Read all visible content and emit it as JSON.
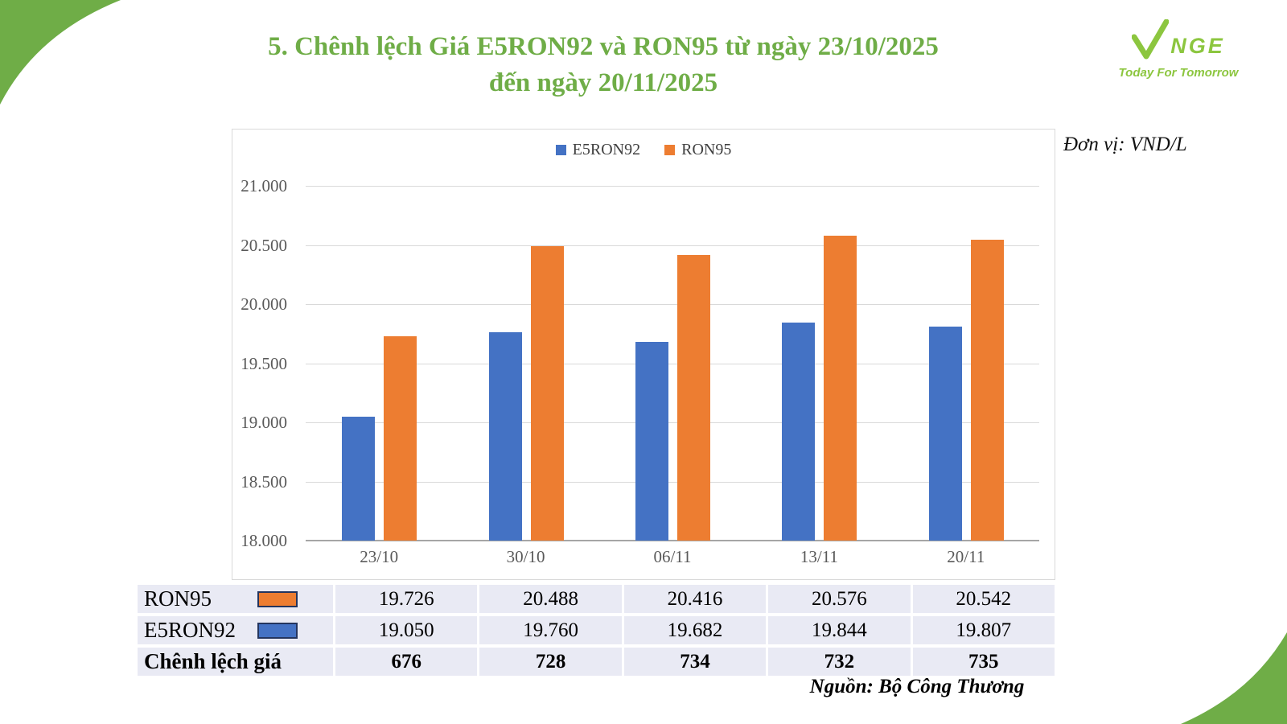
{
  "title": {
    "line1": "5. Chênh lệch Giá E5RON92 và RON95 từ ngày 23/10/2025",
    "line2": "đến ngày 20/11/2025"
  },
  "logo": {
    "brand_rest": "NGE",
    "tagline": "Today For Tomorrow"
  },
  "unit_label": "Đơn vị: VND/L",
  "source_label": "Nguồn: Bộ Công Thương",
  "chart_data": {
    "type": "bar",
    "categories": [
      "23/10",
      "30/10",
      "06/11",
      "13/11",
      "20/11"
    ],
    "series": [
      {
        "name": "E5RON92",
        "color": "#4472C4",
        "values": [
          19050,
          19760,
          19682,
          19844,
          19807
        ]
      },
      {
        "name": "RON95",
        "color": "#ED7D31",
        "values": [
          19726,
          20488,
          20416,
          20576,
          20542
        ]
      }
    ],
    "ylim": [
      18000,
      21000
    ],
    "ytick_step": 500,
    "ytick_labels": [
      "18.000",
      "18.500",
      "19.000",
      "19.500",
      "20.000",
      "20.500",
      "21.000"
    ],
    "grid": true,
    "legend_position": "top"
  },
  "table": {
    "rows": [
      {
        "label": "RON95",
        "swatch": "#ED7D31",
        "bold": false,
        "values": [
          "19.726",
          "20.488",
          "20.416",
          "20.576",
          "20.542"
        ]
      },
      {
        "label": "E5RON92",
        "swatch": "#4472C4",
        "bold": false,
        "values": [
          "19.050",
          "19.760",
          "19.682",
          "19.844",
          "19.807"
        ]
      },
      {
        "label": "Chênh lệch giá",
        "swatch": null,
        "bold": true,
        "values": [
          "676",
          "728",
          "734",
          "732",
          "735"
        ]
      }
    ]
  },
  "colors": {
    "accent_green": "#6FAD47",
    "logo_green": "#8CC63F",
    "bar_blue": "#4472C4",
    "bar_orange": "#ED7D31",
    "table_bg": "#E9EAF4",
    "axis_text": "#595959",
    "grid_line": "#D9D9D9"
  }
}
